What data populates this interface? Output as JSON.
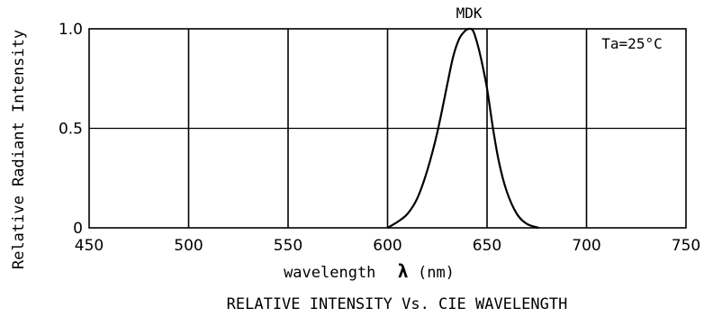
{
  "chart_data": {
    "type": "line",
    "title": "RELATIVE INTENSITY Vs. CIE WAVELENGTH",
    "xlabel_prefix": "wavelength",
    "xlabel_symbol": "λ",
    "xlabel_unit": "(nm)",
    "ylabel": "Relative Radiant Intensity",
    "series_label": "MDK",
    "annotation": "Ta=25°C",
    "xlim": [
      450,
      750
    ],
    "ylim": [
      0,
      1.0
    ],
    "x_ticks": [
      450,
      500,
      550,
      600,
      650,
      700,
      750
    ],
    "y_ticks": [
      0,
      0.5,
      1.0
    ],
    "y_tick_labels": [
      "0",
      "0.5",
      "1.0"
    ],
    "grid": true,
    "series": [
      {
        "name": "MDK",
        "x": [
          600,
          605,
          610,
          615,
          620,
          625,
          630,
          633,
          636,
          639,
          641,
          643,
          645,
          647,
          650,
          653,
          656,
          660,
          665,
          670,
          676
        ],
        "y": [
          0.0,
          0.03,
          0.07,
          0.15,
          0.29,
          0.48,
          0.72,
          0.86,
          0.95,
          0.99,
          1.0,
          0.99,
          0.93,
          0.85,
          0.7,
          0.5,
          0.33,
          0.18,
          0.07,
          0.02,
          0.0
        ]
      }
    ]
  }
}
